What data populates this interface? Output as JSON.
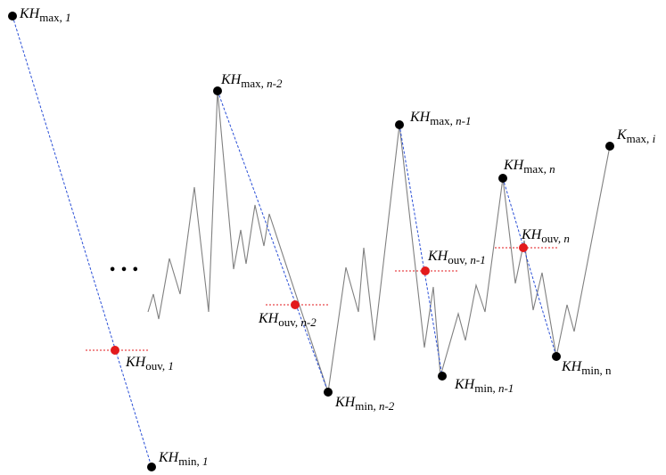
{
  "colors": {
    "price_line": "#808080",
    "trend_line": "#2a4fd6",
    "opening_marker": "#e31a1c",
    "opening_level": "#e31a1c",
    "extreme_point": "#000000",
    "background": "#ffffff"
  },
  "ellipsis": "• • •",
  "labels": {
    "max_1": {
      "main": "KH",
      "sub": "max, ",
      "idx": "1"
    },
    "ouv_1": {
      "main": "KH",
      "sub": "ouv, ",
      "idx": "1"
    },
    "min_1": {
      "main": "KH",
      "sub": "min, ",
      "idx": "1"
    },
    "max_nm2": {
      "main": "KH",
      "sub": "max, ",
      "idx": "n-2"
    },
    "ouv_nm2": {
      "main": "KH",
      "sub": "ouv, ",
      "idx": "n-2"
    },
    "min_nm2": {
      "main": "KH",
      "sub": "min, ",
      "idx": "n-2"
    },
    "max_nm1": {
      "main": "KH",
      "sub": "max, ",
      "idx": "n-1"
    },
    "ouv_nm1": {
      "main": "KH",
      "sub": "ouv, ",
      "idx": "n-1"
    },
    "min_nm1": {
      "main": "KH",
      "sub": "min, ",
      "idx": "n-1"
    },
    "max_n": {
      "main": "KH",
      "sub": "max, ",
      "idx": "n"
    },
    "ouv_n": {
      "main": "KH",
      "sub": "ouv, ",
      "idx": "n"
    },
    "min_n": {
      "main": "KH",
      "sub": "min, n",
      "idx": ""
    },
    "max_i": {
      "main": "K",
      "sub": "max, ",
      "idx": "i"
    }
  }
}
